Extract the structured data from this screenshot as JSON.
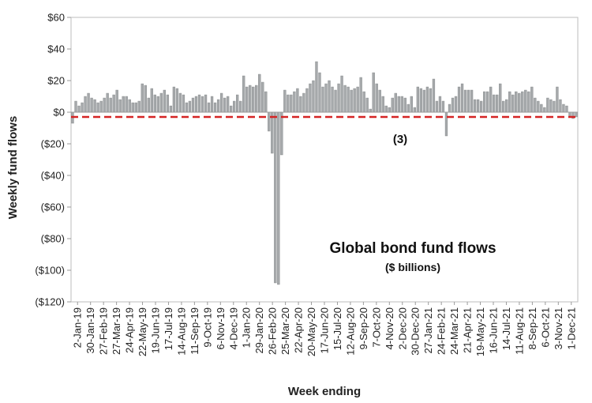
{
  "chart_data": {
    "type": "bar",
    "ylabel": "Weekly fund flows",
    "xlabel": "Week ending",
    "ylim": [
      -120,
      60
    ],
    "y_ticks": [
      60,
      40,
      20,
      0,
      -20,
      -40,
      -60,
      -80,
      -100,
      -120
    ],
    "y_tick_labels": [
      "$60",
      "$40",
      "$20",
      "$0",
      "($20)",
      "($40)",
      "($60)",
      "($80)",
      "($100)",
      "($120)"
    ],
    "x_tick_labels": [
      "2-Jan-19",
      "30-Jan-19",
      "27-Feb-19",
      "27-Mar-19",
      "24-Apr-19",
      "22-May-19",
      "19-Jun-19",
      "17-Jul-19",
      "14-Aug-19",
      "11-Sep-19",
      "9-Oct-19",
      "6-Nov-19",
      "4-Dec-19",
      "1-Jan-20",
      "29-Jan-20",
      "26-Feb-20",
      "25-Mar-20",
      "22-Apr-20",
      "20-May-20",
      "17-Jun-20",
      "15-Jul-20",
      "12-Aug-20",
      "9-Sep-20",
      "7-Oct-20",
      "4-Nov-20",
      "2-Dec-20",
      "30-Dec-20",
      "27-Jan-21",
      "24-Feb-21",
      "24-Mar-21",
      "21-Apr-21",
      "19-May-21",
      "16-Jun-21",
      "14-Jul-21",
      "11-Aug-21",
      "8-Sep-21",
      "6-Oct-21",
      "3-Nov-21",
      "1-Dec-21"
    ],
    "values": [
      -7,
      7,
      4,
      6,
      10,
      12,
      9,
      8,
      6,
      7,
      9,
      12,
      9,
      11,
      14,
      8,
      10,
      10,
      8,
      6,
      6,
      7,
      18,
      17,
      9,
      15,
      11,
      10,
      12,
      14,
      11,
      4,
      16,
      15,
      12,
      11,
      6,
      7,
      9,
      10,
      11,
      10,
      11,
      6,
      10,
      6,
      8,
      12,
      9,
      10,
      4,
      7,
      11,
      7,
      23,
      16,
      17,
      16,
      17,
      24,
      19,
      13,
      -12,
      -26,
      -108,
      -109,
      -27,
      14,
      11,
      11,
      13,
      15,
      10,
      12,
      15,
      18,
      20,
      32,
      25,
      16,
      18,
      20,
      16,
      14,
      18,
      23,
      17,
      16,
      14,
      15,
      16,
      22,
      13,
      9,
      2,
      25,
      18,
      14,
      10,
      4,
      3,
      9,
      12,
      10,
      10,
      9,
      5,
      10,
      3,
      16,
      15,
      14,
      16,
      15,
      21,
      7,
      10,
      7,
      -15,
      5,
      9,
      10,
      16,
      18,
      14,
      14,
      14,
      8,
      8,
      7,
      13,
      13,
      16,
      11,
      11,
      18,
      7,
      8,
      13,
      11,
      13,
      12,
      13,
      14,
      13,
      16,
      9,
      7,
      5,
      3,
      9,
      8,
      7,
      16,
      8,
      5,
      4,
      -3,
      -4,
      -3
    ],
    "bar_color": "#a6a9ab",
    "reference_line": {
      "value": -3,
      "color": "#d42424",
      "style": "dashed"
    },
    "annotations": {
      "title": "Global bond fund flows",
      "subtitle": "($ billions)",
      "value_label": "(3)"
    },
    "grid": false,
    "legend": "none"
  }
}
